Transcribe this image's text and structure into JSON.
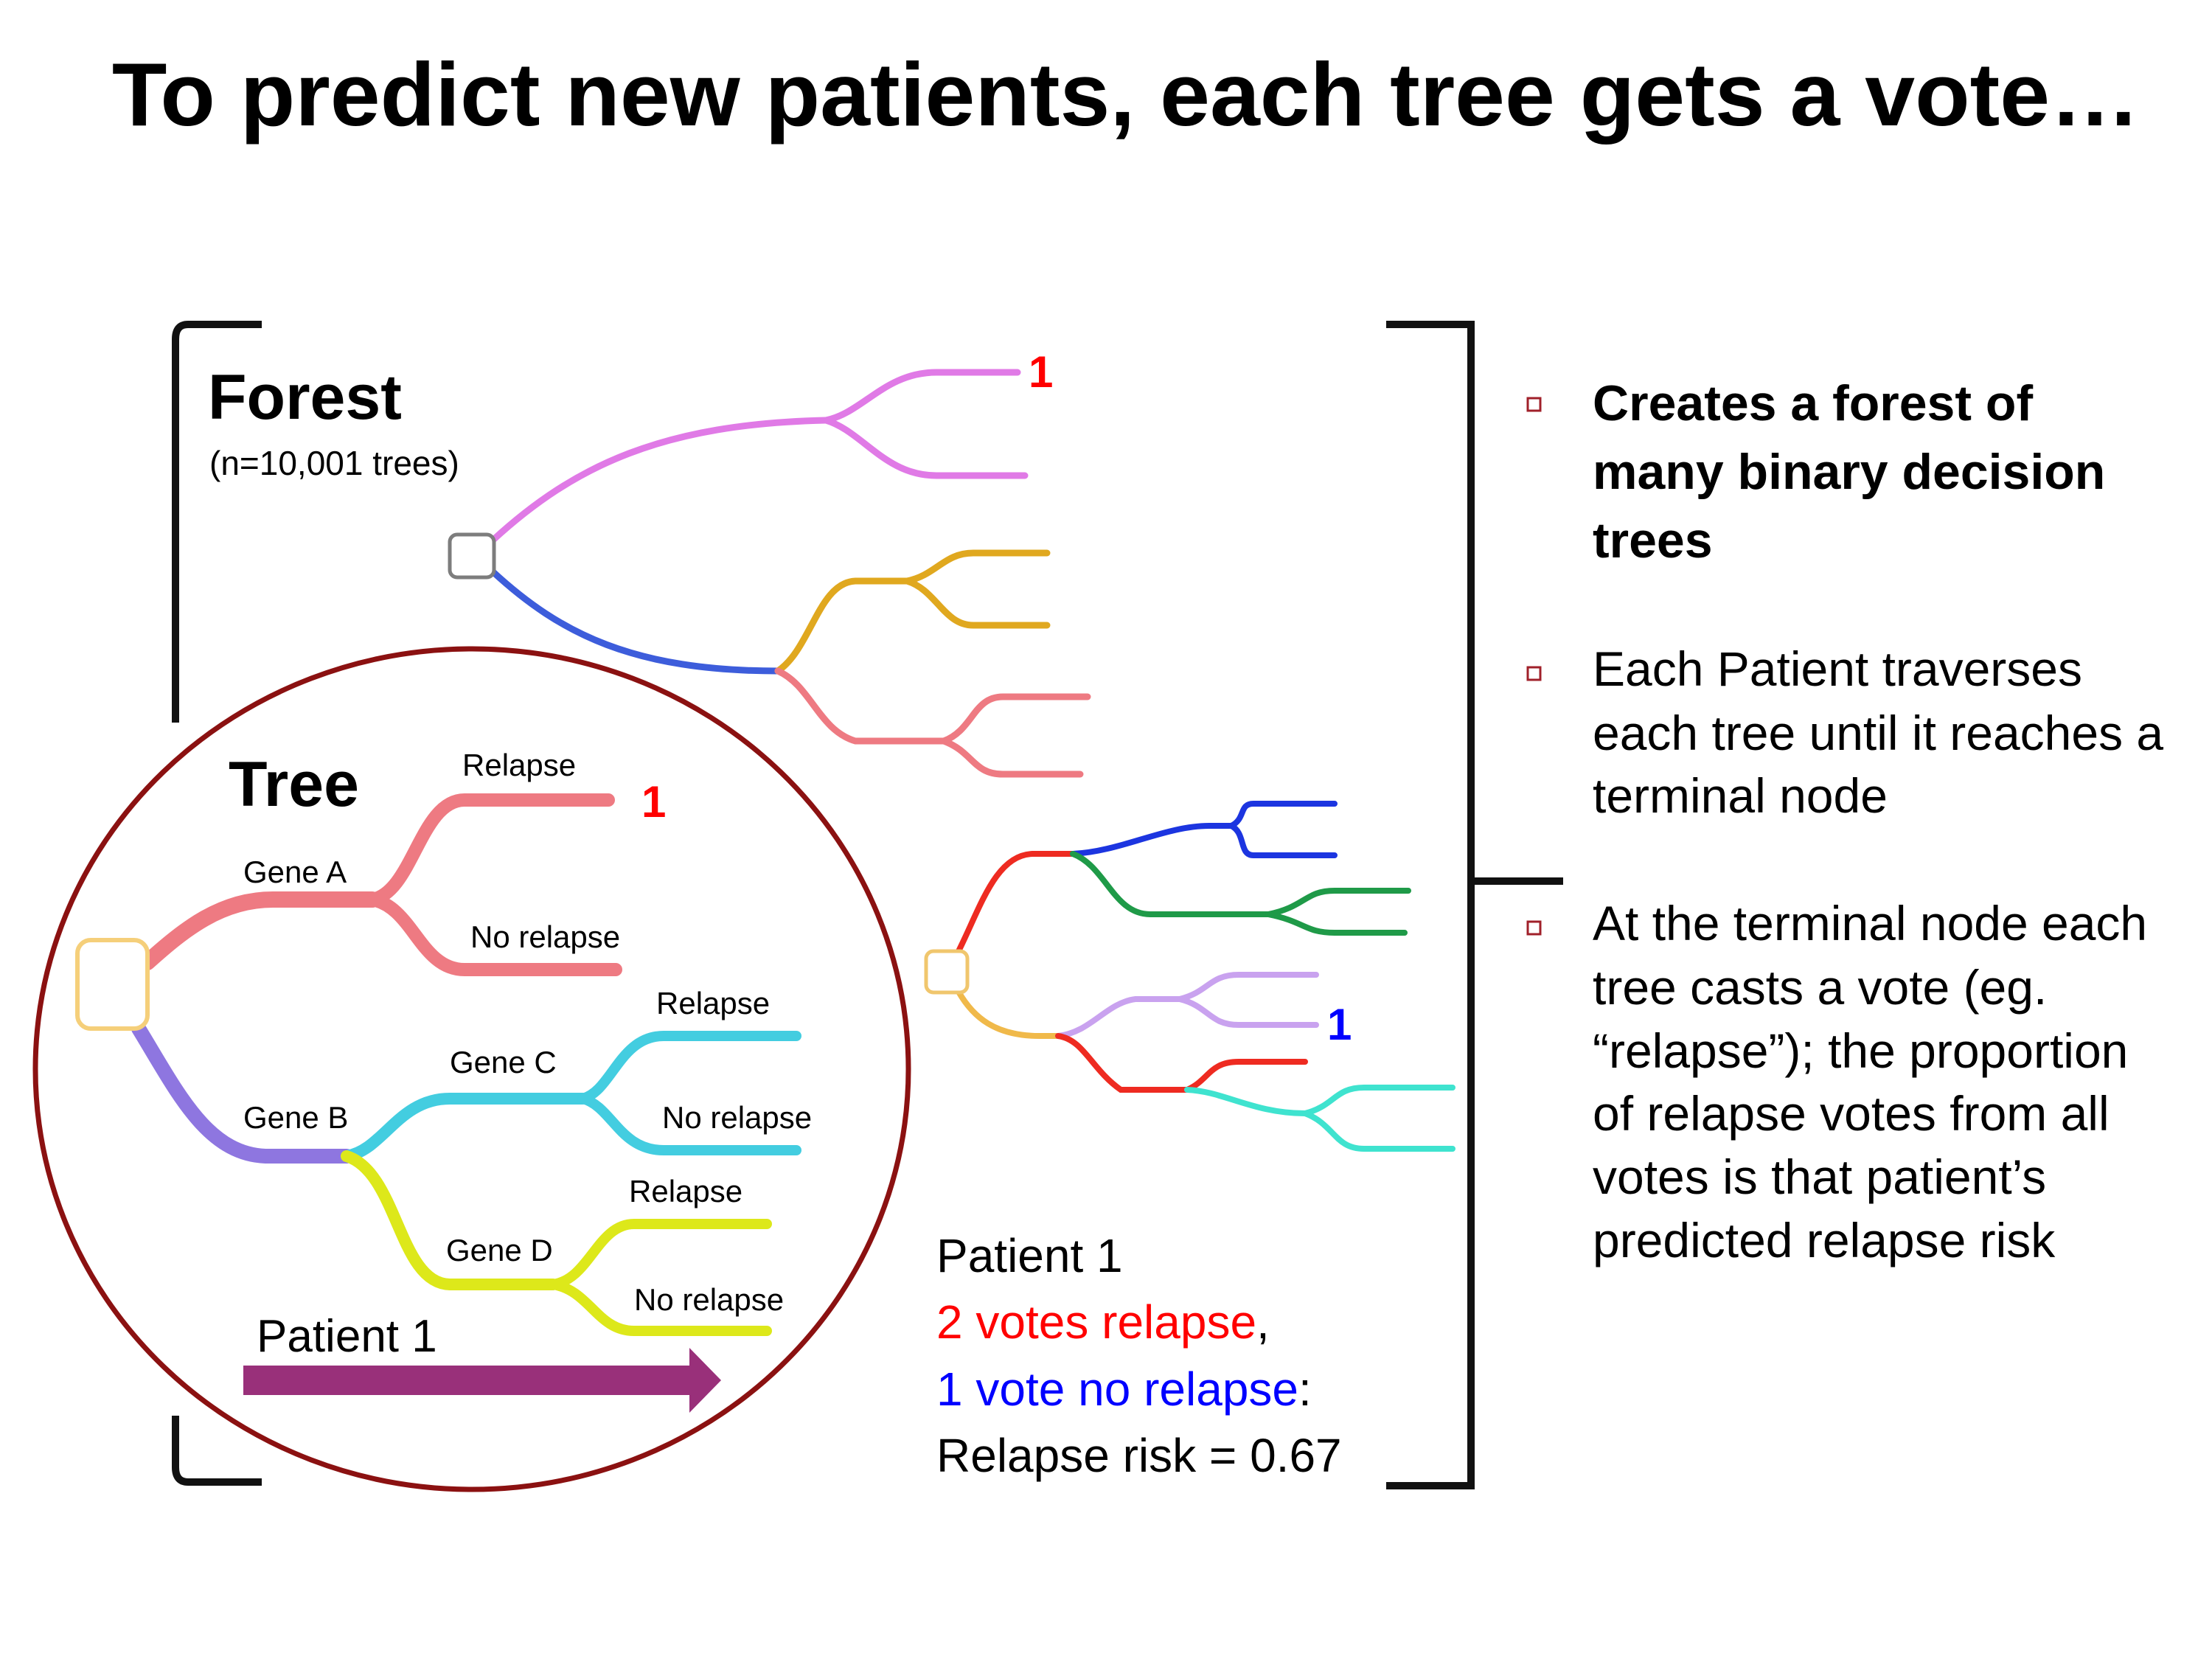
{
  "title": "To predict new patients, each tree gets a vote…",
  "forest": {
    "heading": "Forest",
    "subheading": "(n=10,001 trees)",
    "votes": [
      "1",
      "1"
    ]
  },
  "tree": {
    "heading": "Tree",
    "genes": [
      "Gene A",
      "Gene B",
      "Gene C",
      "Gene D"
    ],
    "outcomes": [
      "Relapse",
      "No relapse",
      "Relapse",
      "No relapse",
      "Relapse",
      "No relapse"
    ],
    "vote": "1",
    "patient_label": "Patient 1"
  },
  "summary": {
    "line1": "Patient 1",
    "line2": "2 votes relapse",
    "line2_suffix": ",",
    "line3": "1 vote no relapse",
    "line3_suffix": ":",
    "line4": "Relapse risk = 0.67"
  },
  "bullets": [
    {
      "lines": [
        "Creates a forest of",
        "many binary decision",
        "trees"
      ]
    },
    {
      "lines": [
        "Each Patient traverses",
        "each tree until it reaches a",
        "terminal node"
      ]
    },
    {
      "lines": [
        "At the terminal node each",
        "tree casts a vote (eg.",
        "“relapse”); the proportion",
        "of relapse votes from all",
        "votes is that patient’s",
        "predicted relapse risk"
      ]
    }
  ],
  "colors": {
    "relapse_red": "#ff0000",
    "no_relapse_blue": "#0000ff",
    "circle": "#8b1111",
    "arrow": "#99307a",
    "bullet": "#a0202a"
  }
}
